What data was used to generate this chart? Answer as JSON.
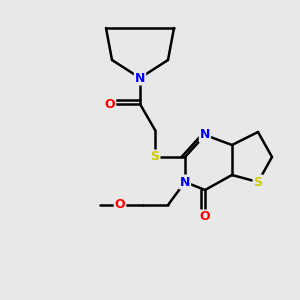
{
  "bg_color": "#e8e8e8",
  "atom_colors": {
    "N": "#0000ff",
    "O": "#ff0000",
    "S": "#cccc00"
  },
  "bond_color": "#000000",
  "bond_width": 1.8
}
